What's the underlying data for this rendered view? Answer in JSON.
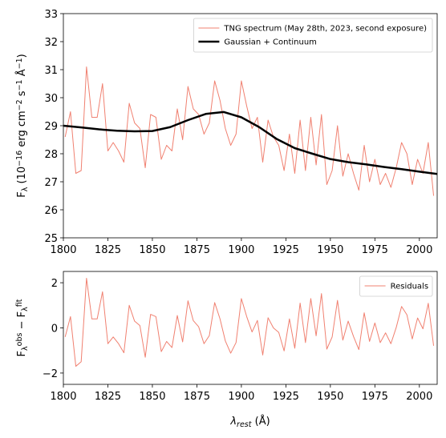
{
  "chart_data": [
    {
      "type": "line",
      "x": [
        1801,
        1804,
        1807,
        1810,
        1813,
        1816,
        1819,
        1822,
        1825,
        1828,
        1831,
        1834,
        1837,
        1840,
        1843,
        1846,
        1849,
        1852,
        1855,
        1858,
        1861,
        1864,
        1867,
        1870,
        1873,
        1876,
        1879,
        1882,
        1885,
        1888,
        1891,
        1894,
        1897,
        1900,
        1903,
        1906,
        1909,
        1912,
        1915,
        1918,
        1921,
        1924,
        1927,
        1930,
        1933,
        1936,
        1939,
        1942,
        1945,
        1948,
        1951,
        1954,
        1957,
        1960,
        1963,
        1966,
        1969,
        1972,
        1975,
        1978,
        1981,
        1984,
        1987,
        1990,
        1993,
        1996,
        1999,
        2002,
        2005,
        2008
      ],
      "series": [
        {
          "name": "TNG spectrum (May 28th, 2023, second exposure)",
          "color": "#f08070",
          "width": 1,
          "values": [
            28.6,
            29.5,
            27.3,
            27.4,
            31.1,
            29.3,
            29.3,
            30.5,
            28.1,
            28.4,
            28.1,
            27.7,
            29.8,
            29.1,
            28.9,
            27.5,
            29.4,
            29.3,
            27.8,
            28.3,
            28.1,
            29.6,
            28.5,
            30.4,
            29.6,
            29.4,
            28.7,
            29.1,
            30.6,
            29.9,
            28.9,
            28.3,
            28.7,
            30.6,
            29.7,
            28.9,
            29.3,
            27.7,
            29.2,
            28.6,
            28.3,
            27.4,
            28.7,
            27.3,
            29.2,
            27.4,
            29.3,
            27.6,
            29.4,
            26.9,
            27.4,
            29.0,
            27.2,
            28.0,
            27.3,
            26.7,
            28.3,
            27.0,
            27.8,
            26.9,
            27.3,
            26.8,
            27.5,
            28.4,
            28.0,
            26.9,
            27.8,
            27.3,
            28.4,
            26.5
          ]
        },
        {
          "name": "Gaussian + Continuum",
          "color": "#000000",
          "width": 2.5,
          "x": [
            1800,
            1810,
            1820,
            1830,
            1840,
            1850,
            1860,
            1870,
            1880,
            1890,
            1900,
            1910,
            1920,
            1930,
            1940,
            1950,
            1960,
            1970,
            1980,
            1990,
            2000,
            2010
          ],
          "values": [
            29.0,
            28.94,
            28.87,
            28.82,
            28.8,
            28.81,
            28.95,
            29.2,
            29.42,
            29.49,
            29.3,
            28.95,
            28.52,
            28.2,
            28.0,
            27.81,
            27.7,
            27.62,
            27.53,
            27.45,
            27.36,
            27.28
          ]
        }
      ],
      "ylabel_parts": [
        {
          "text": "F"
        },
        {
          "text": "λ",
          "shift": "sub"
        },
        {
          "text": " (10"
        },
        {
          "text": "−16",
          "shift": "sup"
        },
        {
          "text": " erg cm"
        },
        {
          "text": "−2",
          "shift": "sup"
        },
        {
          "text": " s"
        },
        {
          "text": "−1",
          "shift": "sup"
        },
        {
          "text": " Å"
        },
        {
          "text": "−1",
          "shift": "sup"
        },
        {
          "text": ")"
        }
      ],
      "xlim": [
        1800,
        2010
      ],
      "xticks": [
        1800,
        1825,
        1850,
        1875,
        1900,
        1925,
        1950,
        1975,
        2000
      ],
      "ylim": [
        25,
        33
      ],
      "yticks": [
        25,
        26,
        27,
        28,
        29,
        30,
        31,
        32,
        33
      ],
      "legend": "upper right"
    },
    {
      "type": "line",
      "x": [
        1801,
        1804,
        1807,
        1810,
        1813,
        1816,
        1819,
        1822,
        1825,
        1828,
        1831,
        1834,
        1837,
        1840,
        1843,
        1846,
        1849,
        1852,
        1855,
        1858,
        1861,
        1864,
        1867,
        1870,
        1873,
        1876,
        1879,
        1882,
        1885,
        1888,
        1891,
        1894,
        1897,
        1900,
        1903,
        1906,
        1909,
        1912,
        1915,
        1918,
        1921,
        1924,
        1927,
        1930,
        1933,
        1936,
        1939,
        1942,
        1945,
        1948,
        1951,
        1954,
        1957,
        1960,
        1963,
        1966,
        1969,
        1972,
        1975,
        1978,
        1981,
        1984,
        1987,
        1990,
        1993,
        1996,
        1999,
        2002,
        2005,
        2008
      ],
      "series": [
        {
          "name": "Residuals",
          "color": "#f08070",
          "width": 1,
          "values": [
            -0.4,
            0.5,
            -1.7,
            -1.5,
            2.2,
            0.4,
            0.4,
            1.6,
            -0.7,
            -0.4,
            -0.7,
            -1.1,
            1.0,
            0.3,
            0.1,
            -1.3,
            0.6,
            0.5,
            -1.05,
            -0.6,
            -0.87,
            0.55,
            -0.62,
            1.2,
            0.32,
            0.05,
            -0.7,
            -0.34,
            1.12,
            0.4,
            -0.58,
            -1.12,
            -0.65,
            1.3,
            0.5,
            -0.18,
            0.33,
            -1.2,
            0.45,
            0,
            -0.2,
            -1.02,
            0.4,
            -0.9,
            1.1,
            -0.65,
            1.3,
            -0.35,
            1.52,
            -0.94,
            -0.4,
            1.22,
            -0.54,
            0.3,
            -0.38,
            -0.96,
            0.67,
            -0.6,
            0.22,
            -0.65,
            -0.22,
            -0.7,
            0.02,
            0.95,
            0.58,
            -0.49,
            0.44,
            -0.04,
            1.09,
            -0.79
          ]
        }
      ],
      "ylabel_parts": [
        {
          "text": "F"
        },
        {
          "text": "λ",
          "shift": "sub"
        },
        {
          "text": "obs",
          "shift": "sup"
        },
        {
          "text": " − F"
        },
        {
          "text": "λ",
          "shift": "sub"
        },
        {
          "text": "fit",
          "shift": "sup"
        }
      ],
      "xlabel_parts": [
        {
          "text": "λ",
          "style": "italic"
        },
        {
          "text": "rest",
          "shift": "sub",
          "style": "italic"
        },
        {
          "text": " (Å)"
        }
      ],
      "xlim": [
        1800,
        2010
      ],
      "xticks": [
        1800,
        1825,
        1850,
        1875,
        1900,
        1925,
        1950,
        1975,
        2000
      ],
      "ylim": [
        -2.5,
        2.5
      ],
      "yticks": [
        {
          "value": -2,
          "label": "−2"
        },
        0,
        2
      ],
      "legend": "upper right"
    }
  ]
}
